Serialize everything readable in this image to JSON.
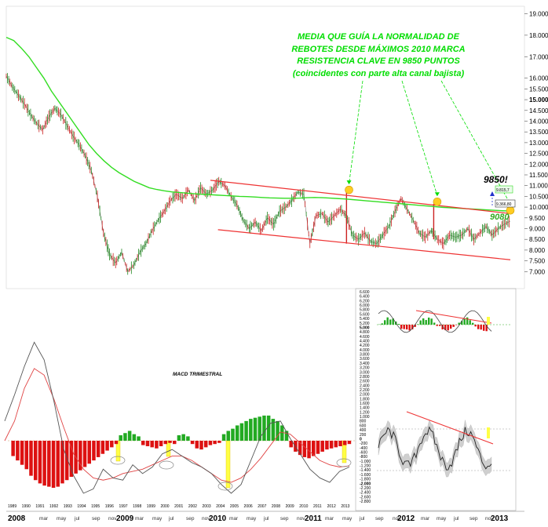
{
  "chart_data": [
    {
      "type": "line",
      "chart": "price",
      "ylim": [
        6500,
        19200
      ],
      "y_ticks": [
        "19.000",
        "18.000",
        "17.000",
        "16.000",
        "15.500",
        "15.000",
        "14.500",
        "14.000",
        "13.500",
        "13.000",
        "12.500",
        "12.000",
        "11.500",
        "11.000",
        "10.500",
        "10.000",
        "9.500",
        "9.000",
        "8.500",
        "8.000",
        "7.500",
        "7.000"
      ],
      "annotation_lines": [
        "MEDIA QUE GUÍA LA NORMALIDAD DE",
        "REBOTES DESDE MÁXIMOS 2010 MARCA",
        "RESISTENCIA CLAVE EN 9850 PUNTOS",
        "(coincidentes con parte alta canal bajista)"
      ],
      "level_labels": {
        "resistance": "9850!",
        "support": "9080",
        "ma_value": "9.815,7",
        "last_price": "9.366,80"
      },
      "series": [
        {
          "values": [
            16100,
            15600,
            15200,
            14800,
            14300,
            13900,
            13600,
            14200,
            14600,
            14300,
            13800,
            13300,
            12900,
            12400,
            11700,
            10500,
            8800,
            7800,
            7400,
            7900,
            7000,
            7300,
            7900,
            8300,
            8900,
            9400,
            9800,
            10300,
            10600,
            10400,
            10800,
            10300,
            10900,
            10600,
            10800,
            11200,
            11000,
            10500,
            10100,
            9400,
            9000,
            9300,
            8900,
            9500,
            9200,
            9800,
            10000,
            10300,
            10700,
            10600,
            8300,
            9600,
            9700,
            9300,
            9600,
            9900,
            9600,
            8700,
            8500,
            8800,
            8400,
            8300,
            8700,
            9100,
            9800,
            10400,
            9900,
            9400,
            8800,
            8600,
            8900,
            8500,
            8300,
            8700,
            8600,
            8700,
            9000,
            8500,
            8800,
            9100,
            8700,
            9000,
            9200,
            9350
          ]
        },
        {
          "values": [
            17900,
            17750,
            17400,
            17000,
            16500,
            16000,
            15400,
            14900,
            14400,
            13900,
            13400,
            12900,
            12500,
            12150,
            11850,
            11600,
            11400,
            11200,
            11050,
            10900,
            10820,
            10760,
            10710,
            10680,
            10650,
            10620,
            10600,
            10580,
            10560,
            10540,
            10520,
            10500,
            10490,
            10470,
            10450,
            10430,
            10420,
            10410,
            10410,
            10420,
            10440,
            10450,
            10440,
            10420,
            10400,
            10380,
            10350,
            10320,
            10290,
            10260,
            10230,
            10200,
            10170,
            10140,
            10110,
            10080,
            10050,
            10020,
            9990,
            9970,
            9950,
            9930,
            9910,
            9890,
            9870,
            9850,
            9830,
            9815
          ]
        }
      ],
      "channel": {
        "upper": [
          [
            0.405,
            11250
          ],
          [
            1.0,
            9700
          ]
        ],
        "lower": [
          [
            0.42,
            8950
          ],
          [
            1.0,
            7550
          ]
        ]
      },
      "touch_points": [
        [
          0.68,
          10800
        ],
        [
          0.855,
          10250
        ],
        [
          1.0,
          9850
        ]
      ],
      "pivot_lines": [
        [
          0.675,
          10750,
          8300
        ],
        [
          0.848,
          10150,
          8500
        ]
      ]
    },
    {
      "type": "bar",
      "chart": "macd",
      "title": "MACD TRIMESTRAL",
      "histogram": [
        -700,
        -900,
        -1100,
        -1300,
        -1600,
        -1800,
        -1950,
        -2050,
        -2100,
        -2150,
        -2100,
        -1950,
        -1800,
        -1650,
        -1500,
        -1350,
        -1200,
        -1050,
        -900,
        -750,
        -600,
        -450,
        -300,
        -150,
        250,
        350,
        450,
        300,
        200,
        -200,
        -250,
        -300,
        -350,
        -250,
        -150,
        -100,
        -150,
        250,
        300,
        200,
        -150,
        -350,
        -400,
        -300,
        -200,
        -150,
        -100,
        300,
        450,
        550,
        700,
        800,
        900,
        1000,
        1050,
        1100,
        1150,
        1150,
        1000,
        900,
        700,
        450,
        -300,
        -500,
        -650,
        -750,
        -800,
        -700,
        -600,
        -500,
        -400,
        -350,
        -300,
        -250,
        -200,
        -150
      ],
      "macd_line": [
        900,
        2100,
        3400,
        4500,
        3700,
        1800,
        -400,
        -1600,
        -2400,
        -2200,
        -1300,
        -1700,
        -1800,
        -1100,
        -1500,
        -1200,
        -600,
        -400,
        -700,
        -1000,
        -1200,
        -1500,
        -2000,
        -2400,
        -2000,
        -900,
        200,
        800,
        900,
        100,
        -600,
        -1300,
        -1700,
        -1900,
        -1400,
        -1200
      ],
      "signal_line": [
        0,
        900,
        2400,
        3300,
        3000,
        1900,
        600,
        -600,
        -1300,
        -1700,
        -1800,
        -1700,
        -1500,
        -1400,
        -1300,
        -1100,
        -900,
        -700,
        -700,
        -900,
        -1200,
        -1500,
        -1800,
        -1900,
        -1700,
        -1300,
        -800,
        -200,
        400,
        300,
        -100,
        -500,
        -900,
        -1100,
        -1200,
        -1150
      ],
      "x_ticks": [
        "1989",
        "1990",
        "1991",
        "1992",
        "1993",
        "1994",
        "1995",
        "1996",
        "1997",
        "1998",
        "1999",
        "2000",
        "2001",
        "2002",
        "2003",
        "2004",
        "2005",
        "2006",
        "2007",
        "2008",
        "2009",
        "2010",
        "2011",
        "2012",
        "2013"
      ],
      "inset_top_ticks": [
        "6.600",
        "6.400",
        "6.200",
        "6.000",
        "5.800",
        "5.600",
        "5.400",
        "5.200",
        "5.000",
        "4.800",
        "4.600",
        "4.400",
        "4.200",
        "4.000",
        "3.800",
        "3.600",
        "3.400",
        "3.200",
        "3.000",
        "2.800",
        "2.600",
        "2.400",
        "2.200",
        "2.000",
        "1.800",
        "1.600",
        "1.400",
        "1.200",
        "1.000",
        "800",
        "600",
        "400",
        "200",
        "0",
        "-200",
        "-400",
        "-600",
        "-800",
        "-1.000",
        "-1.200",
        "-1.400",
        "-1.600",
        "-1.800",
        "-2.000",
        "-2.200",
        "-2.400",
        "-2.600",
        "-2.800"
      ]
    }
  ],
  "bottom_axis": {
    "months": [
      "mar",
      "may",
      "jul",
      "sep",
      "nov",
      "mar",
      "may",
      "jul",
      "sep",
      "nov",
      "mar",
      "may",
      "jul",
      "sep",
      "nov",
      "mar",
      "may",
      "jul",
      "sep",
      "nov",
      "mar",
      "may",
      "jul",
      "sep",
      "nov"
    ],
    "years": [
      "2008",
      "2009",
      "2010",
      "2011",
      "2012",
      "2013"
    ]
  },
  "colors": {
    "ma": "#33dd22",
    "channel": "#ee3333",
    "note": "#00dd00",
    "hist_pos": "#22aa22",
    "hist_neg": "#dd1111",
    "highlight": "#ffff44",
    "touch": "#ffcc22"
  }
}
